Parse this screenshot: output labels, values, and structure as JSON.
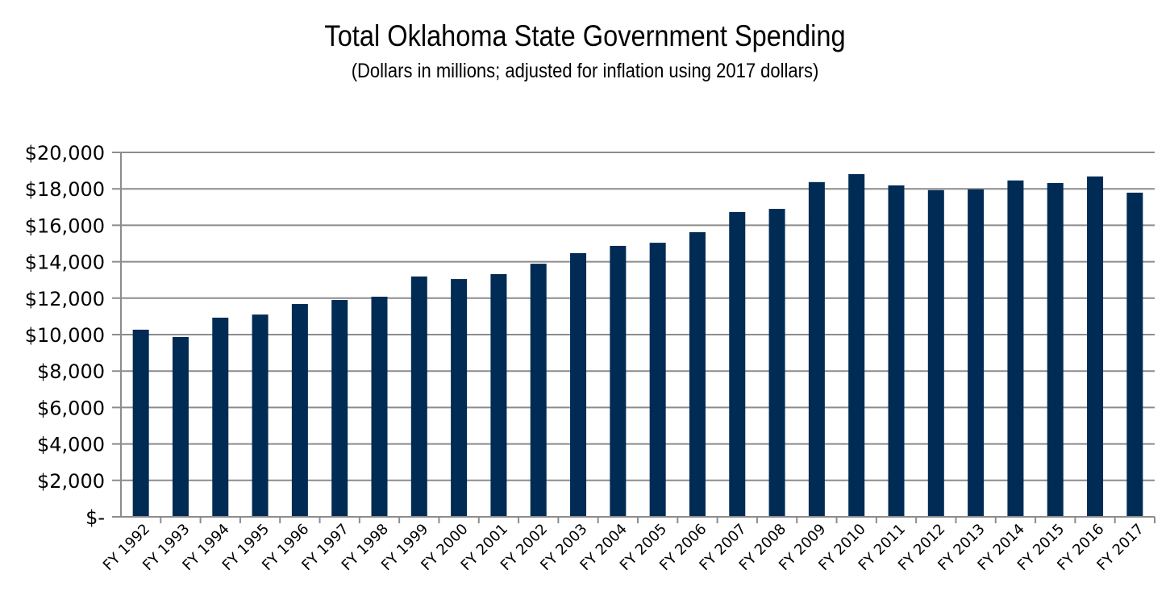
{
  "chart_data": {
    "type": "bar",
    "title": "Total Oklahoma State Government Spending",
    "subtitle": "(Dollars in millions; adjusted for inflation using 2017 dollars)",
    "xlabel": "",
    "ylabel": "",
    "ylim": [
      0,
      20000
    ],
    "yticks": [
      0,
      2000,
      4000,
      6000,
      8000,
      10000,
      12000,
      14000,
      16000,
      18000,
      20000
    ],
    "ytick_labels": [
      "$-",
      "$2,000",
      "$4,000",
      "$6,000",
      "$8,000",
      "$10,000",
      "$12,000",
      "$14,000",
      "$16,000",
      "$18,000",
      "$20,000"
    ],
    "grid": true,
    "bar_color": "#002b54",
    "categories": [
      "FY 1992",
      "FY 1993",
      "FY 1994",
      "FY 1995",
      "FY 1996",
      "FY 1997",
      "FY 1998",
      "FY 1999",
      "FY 2000",
      "FY 2001",
      "FY 2002",
      "FY 2003",
      "FY 2004",
      "FY 2005",
      "FY 2006",
      "FY 2007",
      "FY 2008",
      "FY 2009",
      "FY 2010",
      "FY 2011",
      "FY 2012",
      "FY 2013",
      "FY 2014",
      "FY 2015",
      "FY 2016",
      "FY 2017"
    ],
    "values": [
      10270,
      9870,
      10930,
      11100,
      11680,
      11900,
      12080,
      13190,
      13050,
      13320,
      13890,
      14470,
      14870,
      15040,
      15620,
      16730,
      16900,
      18370,
      18810,
      18190,
      17930,
      17970,
      18460,
      18320,
      18680,
      17790
    ]
  }
}
